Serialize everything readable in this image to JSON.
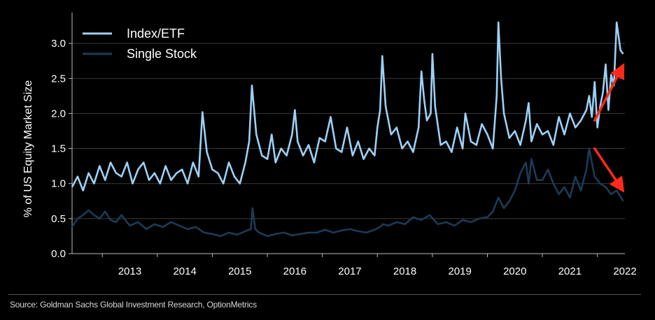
{
  "chart_data": {
    "type": "line",
    "title": "",
    "xlabel": "",
    "ylabel": "% of US Equity Market Size",
    "xlim": [
      2012.45,
      2022.5
    ],
    "ylim": [
      0,
      3.4
    ],
    "yticks": [
      "0.0",
      "0.5",
      "1.0",
      "1.5",
      "2.0",
      "2.5",
      "3.0"
    ],
    "xticks": [
      "2013",
      "2014",
      "2015",
      "2016",
      "2017",
      "2018",
      "2019",
      "2020",
      "2021",
      "2022"
    ],
    "grid": true,
    "legend_position": "top-left",
    "colors": {
      "index_etf": "#9dd0f5",
      "single_stock": "#1b3b57",
      "arrow": "#ff2a1a"
    },
    "series": [
      {
        "name": "Index/ETF",
        "color": "#9dd0f5",
        "x": [
          2012.45,
          2012.55,
          2012.65,
          2012.75,
          2012.85,
          2012.95,
          2013.05,
          2013.15,
          2013.25,
          2013.35,
          2013.45,
          2013.55,
          2013.65,
          2013.75,
          2013.85,
          2013.95,
          2014.05,
          2014.15,
          2014.25,
          2014.35,
          2014.45,
          2014.55,
          2014.65,
          2014.75,
          2014.82,
          2014.9,
          2015.0,
          2015.1,
          2015.2,
          2015.3,
          2015.4,
          2015.5,
          2015.6,
          2015.67,
          2015.72,
          2015.8,
          2015.9,
          2016.0,
          2016.08,
          2016.15,
          2016.25,
          2016.35,
          2016.45,
          2016.5,
          2016.55,
          2016.65,
          2016.75,
          2016.85,
          2016.95,
          2017.05,
          2017.15,
          2017.25,
          2017.35,
          2017.45,
          2017.55,
          2017.65,
          2017.75,
          2017.85,
          2017.95,
          2018.0,
          2018.05,
          2018.09,
          2018.15,
          2018.25,
          2018.35,
          2018.45,
          2018.55,
          2018.65,
          2018.75,
          2018.8,
          2018.85,
          2018.9,
          2018.97,
          2019.0,
          2019.05,
          2019.15,
          2019.25,
          2019.35,
          2019.45,
          2019.55,
          2019.6,
          2019.7,
          2019.8,
          2019.9,
          2020.0,
          2020.1,
          2020.17,
          2020.2,
          2020.25,
          2020.3,
          2020.4,
          2020.5,
          2020.6,
          2020.7,
          2020.75,
          2020.8,
          2020.9,
          2021.0,
          2021.1,
          2021.2,
          2021.3,
          2021.4,
          2021.5,
          2021.6,
          2021.7,
          2021.8,
          2021.85,
          2021.9,
          2021.95,
          2022.0,
          2022.05,
          2022.1,
          2022.15,
          2022.2,
          2022.25,
          2022.3,
          2022.35,
          2022.42,
          2022.47
        ],
        "values": [
          0.95,
          1.1,
          0.9,
          1.15,
          1.0,
          1.25,
          1.05,
          1.3,
          1.15,
          1.1,
          1.3,
          1.0,
          1.2,
          1.3,
          1.05,
          1.15,
          1.0,
          1.25,
          1.05,
          1.15,
          1.2,
          1.0,
          1.3,
          1.1,
          2.02,
          1.45,
          1.2,
          1.15,
          1.0,
          1.3,
          1.1,
          1.0,
          1.3,
          1.6,
          2.4,
          1.7,
          1.4,
          1.35,
          1.7,
          1.3,
          1.5,
          1.4,
          1.7,
          2.05,
          1.6,
          1.4,
          1.55,
          1.3,
          1.65,
          1.6,
          1.95,
          1.5,
          1.45,
          1.8,
          1.4,
          1.6,
          1.35,
          1.5,
          1.4,
          1.8,
          2.05,
          2.82,
          2.1,
          1.7,
          1.8,
          1.5,
          1.6,
          1.45,
          1.8,
          2.6,
          2.2,
          1.9,
          2.0,
          2.85,
          2.1,
          1.55,
          1.6,
          1.45,
          1.8,
          1.5,
          2.0,
          1.6,
          1.55,
          1.85,
          1.7,
          1.5,
          2.25,
          3.3,
          2.5,
          2.0,
          1.65,
          1.75,
          1.55,
          1.9,
          2.15,
          1.6,
          1.85,
          1.7,
          1.75,
          1.55,
          1.95,
          1.7,
          2.0,
          1.8,
          1.9,
          2.05,
          2.25,
          1.95,
          2.45,
          1.8,
          2.1,
          2.3,
          2.7,
          2.05,
          2.55,
          2.4,
          3.3,
          2.9,
          2.85
        ]
      },
      {
        "name": "Single Stock",
        "color": "#1b3b57",
        "x": [
          2012.45,
          2012.55,
          2012.65,
          2012.75,
          2012.85,
          2012.95,
          2013.05,
          2013.15,
          2013.25,
          2013.35,
          2013.5,
          2013.65,
          2013.8,
          2013.95,
          2014.1,
          2014.25,
          2014.4,
          2014.55,
          2014.7,
          2014.85,
          2015.0,
          2015.15,
          2015.3,
          2015.45,
          2015.6,
          2015.7,
          2015.73,
          2015.78,
          2015.85,
          2016.0,
          2016.15,
          2016.3,
          2016.45,
          2016.6,
          2016.75,
          2016.9,
          2017.05,
          2017.2,
          2017.35,
          2017.5,
          2017.65,
          2017.8,
          2017.95,
          2018.05,
          2018.1,
          2018.2,
          2018.35,
          2018.5,
          2018.65,
          2018.8,
          2018.95,
          2019.1,
          2019.25,
          2019.4,
          2019.55,
          2019.7,
          2019.85,
          2020.0,
          2020.1,
          2020.2,
          2020.3,
          2020.4,
          2020.5,
          2020.6,
          2020.7,
          2020.75,
          2020.8,
          2020.9,
          2021.0,
          2021.1,
          2021.2,
          2021.3,
          2021.4,
          2021.5,
          2021.6,
          2021.7,
          2021.8,
          2021.85,
          2021.95,
          2022.05,
          2022.15,
          2022.25,
          2022.35,
          2022.47
        ],
        "values": [
          0.38,
          0.5,
          0.55,
          0.62,
          0.55,
          0.5,
          0.6,
          0.48,
          0.45,
          0.55,
          0.4,
          0.45,
          0.35,
          0.42,
          0.38,
          0.45,
          0.4,
          0.35,
          0.38,
          0.3,
          0.28,
          0.25,
          0.3,
          0.27,
          0.32,
          0.35,
          0.65,
          0.35,
          0.3,
          0.25,
          0.28,
          0.3,
          0.26,
          0.28,
          0.3,
          0.3,
          0.34,
          0.3,
          0.33,
          0.35,
          0.32,
          0.3,
          0.34,
          0.38,
          0.42,
          0.4,
          0.45,
          0.42,
          0.52,
          0.48,
          0.55,
          0.42,
          0.45,
          0.4,
          0.48,
          0.45,
          0.5,
          0.52,
          0.6,
          0.8,
          0.65,
          0.75,
          0.9,
          1.15,
          1.3,
          1.0,
          1.35,
          1.05,
          1.05,
          1.2,
          1.0,
          0.85,
          0.95,
          0.8,
          1.1,
          0.9,
          1.2,
          1.5,
          1.1,
          1.0,
          0.95,
          0.85,
          0.9,
          0.75
        ]
      }
    ],
    "annotations": [
      "up-arrow (Index/ETF rising)",
      "down-arrow (Single Stock falling)"
    ]
  },
  "legend": [
    {
      "label": "Index/ETF"
    },
    {
      "label": "Single Stock"
    }
  ],
  "footer": {
    "source": "Source: Goldman Sachs Global Investment Research, OptionMetrics"
  }
}
